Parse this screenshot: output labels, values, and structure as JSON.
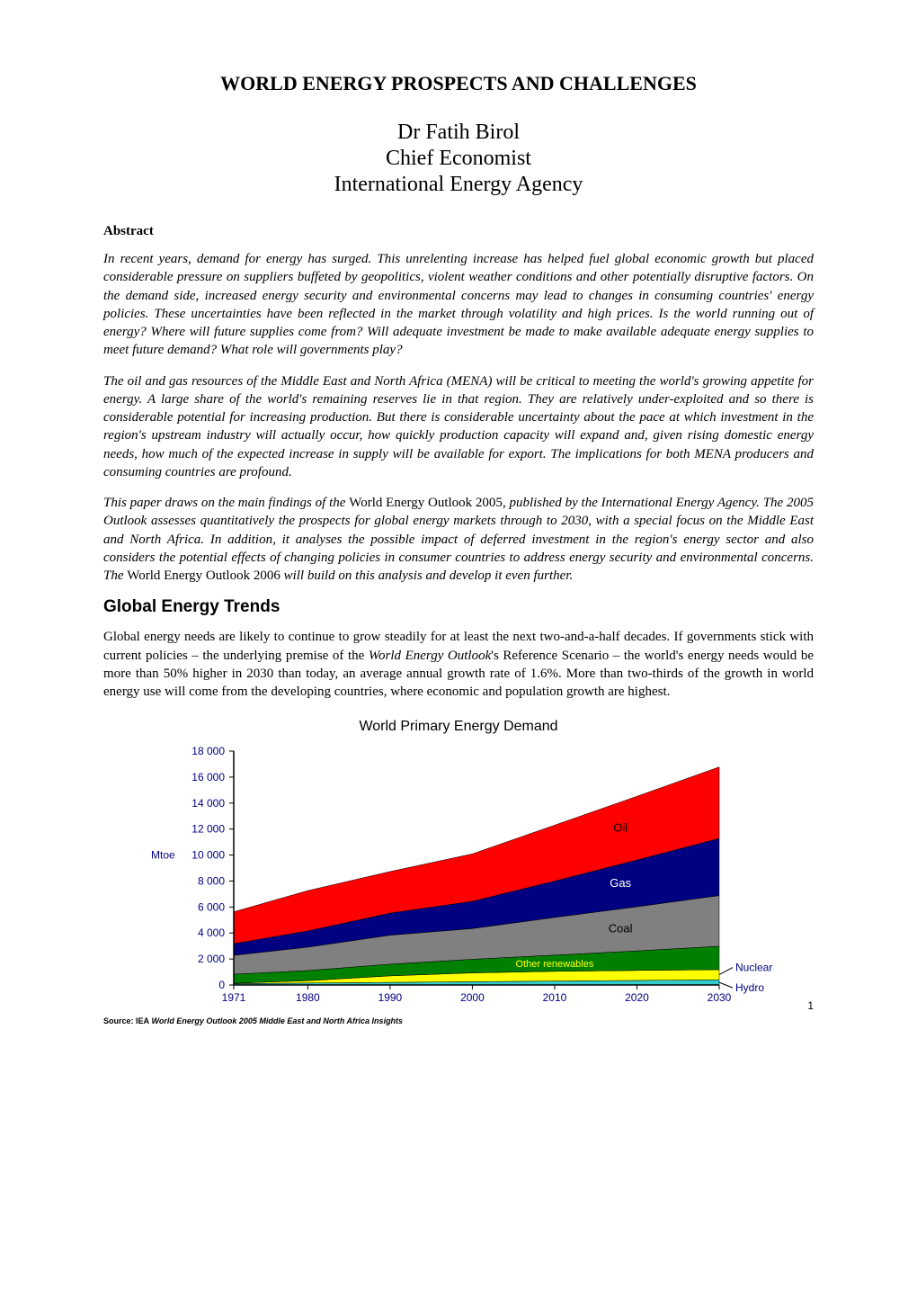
{
  "title": "WORLD ENERGY PROSPECTS AND CHALLENGES",
  "author": {
    "name": "Dr Fatih Birol",
    "role": "Chief Economist",
    "org": "International Energy Agency"
  },
  "abstract": {
    "heading": "Abstract",
    "p1": "In recent years, demand for energy has surged. This unrelenting increase has helped fuel global economic growth but placed considerable pressure on suppliers buffeted by geopolitics, violent weather conditions and other potentially disruptive factors. On the demand side, increased energy security and environmental concerns may lead to changes in consuming countries' energy policies.  These uncertainties have been reflected in the market through volatility and high prices. Is the world running out of energy?  Where will future supplies come from? Will adequate investment be made to make available adequate energy supplies to meet future demand?  What role will governments play?",
    "p2": "The oil and gas resources of the Middle East and North Africa (MENA) will be critical to meeting the world's growing appetite for energy. A large share of the world's remaining reserves lie in that region. They are relatively under-exploited and so there is considerable potential for increasing production. But there is considerable uncertainty about the pace at which investment in the region's upstream industry will actually occur, how quickly production capacity will expand and, given rising domestic energy needs, how much of the expected increase in supply will be available for export. The implications for both MENA producers and consuming countries are profound.",
    "p3a": "This paper draws on the main findings of the ",
    "p3b_up": "World Energy Outlook 2005",
    "p3c": ", published by the International Energy Agency. The 2005 Outlook assesses quantitatively the prospects for global energy markets through to 2030, with a special focus on the Middle East and North Africa. In addition, it analyses the possible impact of deferred investment in the region's energy sector and also considers the potential effects of changing policies in consumer countries to address energy security and environmental concerns. The ",
    "p3d_up": "World Energy Outlook 2006 ",
    "p3e": "will build on this analysis and develop it even further."
  },
  "section1": {
    "heading": "Global Energy Trends",
    "p1a": "Global energy needs are likely to continue to grow steadily for at least the next two-and-a-half decades. If governments stick with current policies – the underlying premise of the ",
    "p1b_i": "World Energy Outlook",
    "p1c": "'s Reference Scenario – the world's energy needs would be more than 50% higher in 2030 than today, an average annual growth rate of 1.6%. More than two-thirds of the growth in world energy use will come from the developing countries, where economic and population growth are highest."
  },
  "chart": {
    "title": "World Primary Energy Demand",
    "type": "stacked-area",
    "ylabel": "Mtoe",
    "xlim": [
      1971,
      2030
    ],
    "ylim": [
      0,
      18000
    ],
    "ytick_step": 2000,
    "yticks": [
      "0",
      "2 000",
      "4 000",
      "6 000",
      "8 000",
      "10 000",
      "12 000",
      "14 000",
      "16 000",
      "18 000"
    ],
    "xticks": [
      1971,
      1980,
      1990,
      2000,
      2010,
      2020,
      2030
    ],
    "background_color": "#ffffff",
    "grid_color": "#000000",
    "plot_border_color": "#000000",
    "axis_font_size": 12,
    "axis_font_color": "#000080",
    "years": [
      1971,
      1980,
      1990,
      2000,
      2010,
      2020,
      2030
    ],
    "series": [
      {
        "name": "Hydro",
        "label": "Hydro",
        "color": "#33cccc",
        "values": [
          100,
          150,
          200,
          250,
          300,
          350,
          400
        ]
      },
      {
        "name": "Nuclear",
        "label": "Nuclear",
        "color": "#ffff00",
        "values": [
          30,
          180,
          500,
          680,
          750,
          770,
          780
        ]
      },
      {
        "name": "Other renewables",
        "label": "Other renewables",
        "color": "#008000",
        "values": [
          700,
          780,
          900,
          1050,
          1250,
          1500,
          1800
        ]
      },
      {
        "name": "Coal",
        "label": "Coal",
        "color": "#808080",
        "values": [
          1450,
          1800,
          2230,
          2360,
          2900,
          3400,
          3900
        ]
      },
      {
        "name": "Gas",
        "label": "Gas",
        "color": "#000080",
        "values": [
          900,
          1250,
          1700,
          2100,
          2800,
          3600,
          4400
        ]
      },
      {
        "name": "Oil",
        "label": "Oil",
        "color": "#ff0000",
        "values": [
          2450,
          3100,
          3200,
          3650,
          4300,
          4900,
          5500
        ]
      }
    ],
    "series_labels_right": [
      {
        "text": "Nuclear",
        "color": "#000080"
      },
      {
        "text": "Hydro",
        "color": "#000080"
      }
    ],
    "in_area_labels": [
      {
        "text": "Oil",
        "color": "#000000"
      },
      {
        "text": "Gas",
        "color": "#ffffff"
      },
      {
        "text": "Coal",
        "color": "#000000"
      },
      {
        "text": "Other renewables",
        "color": "#ffff00"
      }
    ]
  },
  "source": {
    "prefix": "Source: IEA",
    "italic": " World Energy Outlook 2005 Middle East and North Africa Insights"
  },
  "page_number": "1"
}
